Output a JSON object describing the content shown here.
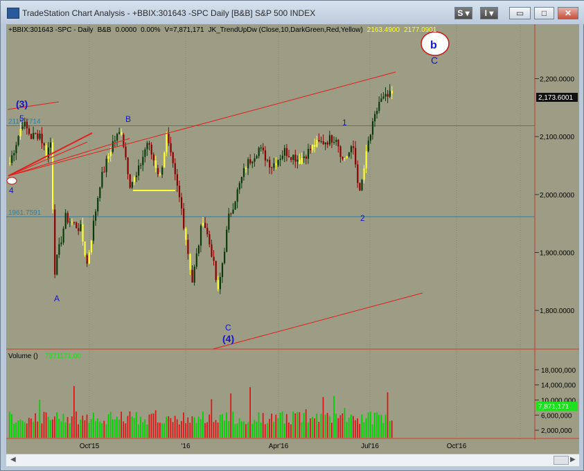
{
  "window": {
    "title": "TradeStation Chart Analysis - +BBIX:301643 -SPC Daily [B&B] S&P 500 INDEX",
    "buttons": {
      "s": "S",
      "i": "I",
      "minimize": "",
      "maximize": "",
      "close": ""
    }
  },
  "chart_header": {
    "symbol": "+BBIX:301643 -SPC - Daily",
    "session": "B&B",
    "change": "0.0000",
    "pct": "0.00%",
    "volume": "V=7,871,171",
    "indicator": "JK_TrendUpDw (Close,10,DarkGreen,Red,Yellow)",
    "ind_v1": "2163.4900",
    "ind_v2": "2177.0901"
  },
  "volume_header": {
    "label": "Volume ()",
    "value": "7871171.00"
  },
  "colors": {
    "panel_bg": "#9c9d84",
    "up": "#0a3a0a",
    "down": "#8b0000",
    "neutral": "#ffff33",
    "trendline": "#e41c1c",
    "hline": "#2c7ea6",
    "label": "#1414cc",
    "vol_up": "#00d200",
    "vol_down": "#e01414"
  },
  "chart_data": {
    "type": "candlestick",
    "ylim": [
      1750,
      2270
    ],
    "y_ticks": [
      "1,800.0000",
      "1,900.0000",
      "2,000.0000",
      "2,100.0000",
      "2,200.0000"
    ],
    "last_price": "2,173.6001",
    "x_labels": [
      "Oct'15",
      "'16",
      "Apr'16",
      "Jul'16",
      "Oct'16"
    ],
    "hlines": [
      {
        "label": "2118.7714",
        "value": 2118.7714
      },
      {
        "label": "1961.7591",
        "value": 1961.7591
      }
    ],
    "wave_labels": [
      "(3)",
      "5",
      "4",
      "A",
      "B",
      "C",
      "(4)",
      "1",
      "2",
      "b",
      "C"
    ],
    "path": [
      [
        0,
        2055
      ],
      [
        6,
        2125
      ],
      [
        10,
        2100
      ],
      [
        14,
        2105
      ],
      [
        17,
        2070
      ],
      [
        19,
        2090
      ],
      [
        21,
        1870
      ],
      [
        26,
        1960
      ],
      [
        33,
        1940
      ],
      [
        36,
        1880
      ],
      [
        42,
        2020
      ],
      [
        48,
        2090
      ],
      [
        52,
        2110
      ],
      [
        56,
        2020
      ],
      [
        59,
        2030
      ],
      [
        64,
        2090
      ],
      [
        70,
        2030
      ],
      [
        73,
        2100
      ],
      [
        80,
        1975
      ],
      [
        85,
        1850
      ],
      [
        90,
        1960
      ],
      [
        94,
        1900
      ],
      [
        97,
        1830
      ],
      [
        102,
        1960
      ],
      [
        110,
        2050
      ],
      [
        116,
        2080
      ],
      [
        122,
        2050
      ],
      [
        128,
        2075
      ],
      [
        135,
        2060
      ],
      [
        142,
        2085
      ],
      [
        152,
        2100
      ],
      [
        155,
        2060
      ],
      [
        160,
        2080
      ],
      [
        163,
        2000
      ],
      [
        167,
        2090
      ],
      [
        172,
        2160
      ],
      [
        178,
        2172
      ]
    ],
    "volume": {
      "ylim": [
        0,
        20000000
      ],
      "y_ticks": [
        "2,000,000",
        "6,000,000",
        "10,000,000",
        "14,000,000",
        "18,000,000"
      ],
      "last": "7,871,171"
    }
  }
}
